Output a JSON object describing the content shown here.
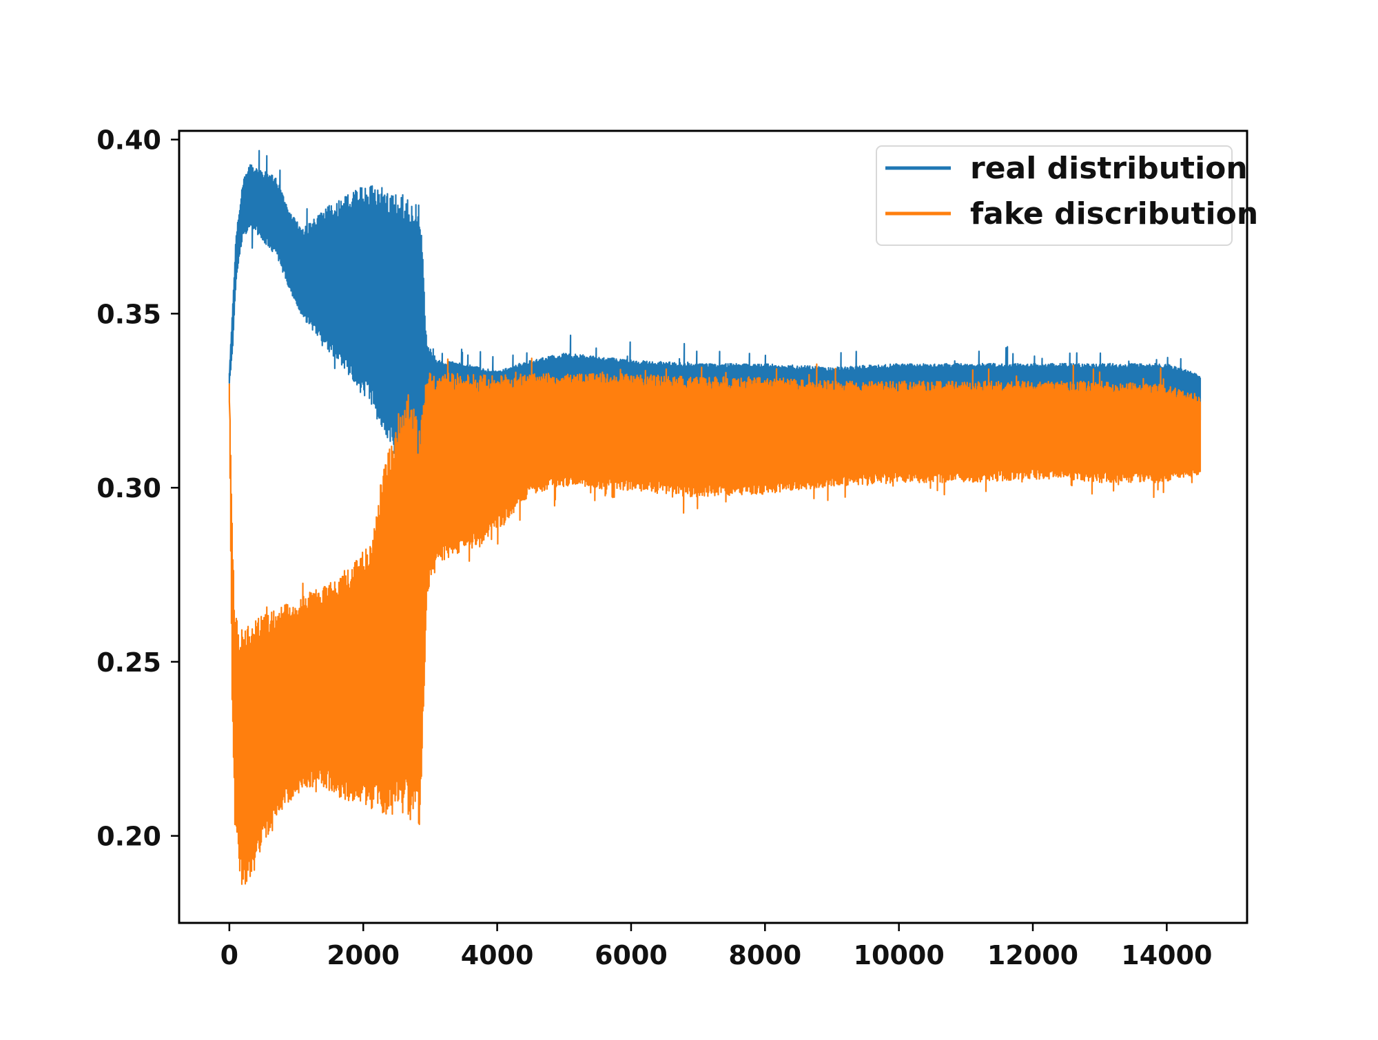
{
  "chart_data": {
    "type": "line",
    "title": "",
    "xlabel": "",
    "ylabel": "",
    "xlim": [
      -750,
      15200
    ],
    "ylim": [
      0.175,
      0.4025
    ],
    "grid": false,
    "legend_position": "top-right",
    "x_ticks": [
      0,
      2000,
      4000,
      6000,
      8000,
      10000,
      12000,
      14000
    ],
    "x_tick_labels": [
      "0",
      "2000",
      "4000",
      "6000",
      "8000",
      "10000",
      "12000",
      "14000"
    ],
    "y_ticks": [
      0.2,
      0.25,
      0.3,
      0.35,
      0.4
    ],
    "y_tick_labels": [
      "0.20",
      "0.25",
      "0.30",
      "0.35",
      "0.40"
    ],
    "series": [
      {
        "name": "real distribution",
        "color": "#1f77b4",
        "band": {
          "x": [
            0,
            50,
            100,
            200,
            300,
            400,
            500,
            700,
            900,
            1100,
            1300,
            1500,
            1700,
            1900,
            2100,
            2300,
            2500,
            2700,
            2850,
            2950,
            3100,
            3500,
            4000,
            4500,
            5000,
            6000,
            7000,
            8000,
            9000,
            10000,
            11000,
            12000,
            13000,
            14000,
            14500
          ],
          "upper": [
            0.333,
            0.352,
            0.372,
            0.387,
            0.392,
            0.391,
            0.39,
            0.388,
            0.378,
            0.373,
            0.376,
            0.379,
            0.381,
            0.383,
            0.384,
            0.381,
            0.38,
            0.378,
            0.377,
            0.34,
            0.336,
            0.335,
            0.333,
            0.336,
            0.338,
            0.336,
            0.335,
            0.335,
            0.334,
            0.335,
            0.335,
            0.335,
            0.335,
            0.335,
            0.332
          ],
          "lower": [
            0.33,
            0.34,
            0.36,
            0.373,
            0.375,
            0.375,
            0.372,
            0.368,
            0.358,
            0.35,
            0.345,
            0.34,
            0.337,
            0.332,
            0.327,
            0.32,
            0.312,
            0.305,
            0.302,
            0.312,
            0.322,
            0.324,
            0.325,
            0.326,
            0.326,
            0.325,
            0.324,
            0.324,
            0.324,
            0.324,
            0.324,
            0.324,
            0.324,
            0.324,
            0.32
          ]
        }
      },
      {
        "name": "fake discribution",
        "color": "#ff7f0e",
        "band": {
          "x": [
            0,
            40,
            80,
            150,
            250,
            350,
            500,
            700,
            900,
            1100,
            1300,
            1500,
            1700,
            1900,
            2100,
            2300,
            2500,
            2700,
            2850,
            2950,
            3050,
            3300,
            3700,
            4000,
            4500,
            5000,
            6000,
            7000,
            8000,
            9000,
            10000,
            11000,
            12000,
            13000,
            14000,
            14500
          ],
          "upper": [
            0.33,
            0.29,
            0.262,
            0.255,
            0.256,
            0.258,
            0.26,
            0.262,
            0.264,
            0.266,
            0.268,
            0.27,
            0.273,
            0.276,
            0.28,
            0.3,
            0.315,
            0.32,
            0.31,
            0.33,
            0.33,
            0.33,
            0.33,
            0.33,
            0.331,
            0.331,
            0.331,
            0.33,
            0.33,
            0.329,
            0.329,
            0.329,
            0.329,
            0.329,
            0.328,
            0.325
          ],
          "lower": [
            0.325,
            0.24,
            0.21,
            0.193,
            0.189,
            0.193,
            0.2,
            0.208,
            0.213,
            0.216,
            0.217,
            0.216,
            0.214,
            0.213,
            0.212,
            0.211,
            0.212,
            0.211,
            0.209,
            0.27,
            0.28,
            0.283,
            0.285,
            0.29,
            0.3,
            0.302,
            0.301,
            0.299,
            0.3,
            0.302,
            0.303,
            0.303,
            0.304,
            0.303,
            0.303,
            0.305
          ]
        }
      }
    ]
  }
}
